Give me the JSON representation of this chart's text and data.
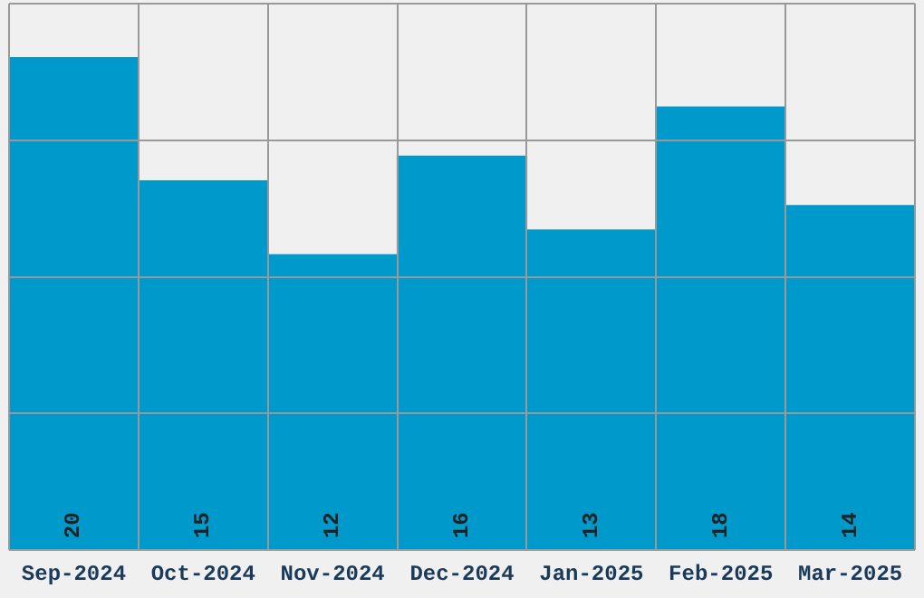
{
  "chart_data": {
    "type": "bar",
    "categories": [
      "Sep-2024",
      "Oct-2024",
      "Nov-2024",
      "Dec-2024",
      "Jan-2025",
      "Feb-2025",
      "Mar-2025"
    ],
    "values": [
      20,
      15,
      12,
      16,
      13,
      18,
      14
    ],
    "color": "#0099cc",
    "ylim": [
      0,
      22.2
    ],
    "yticks": [
      {
        "value": 0,
        "label": null
      },
      {
        "value": 5.55,
        "label": null
      },
      {
        "value": 11.1,
        "label": null
      },
      {
        "value": 16.65,
        "label": null
      },
      {
        "value": 22.2,
        "label": null
      }
    ],
    "grid": true,
    "tick_labels": "x",
    "data_labels": true,
    "legend": false
  }
}
